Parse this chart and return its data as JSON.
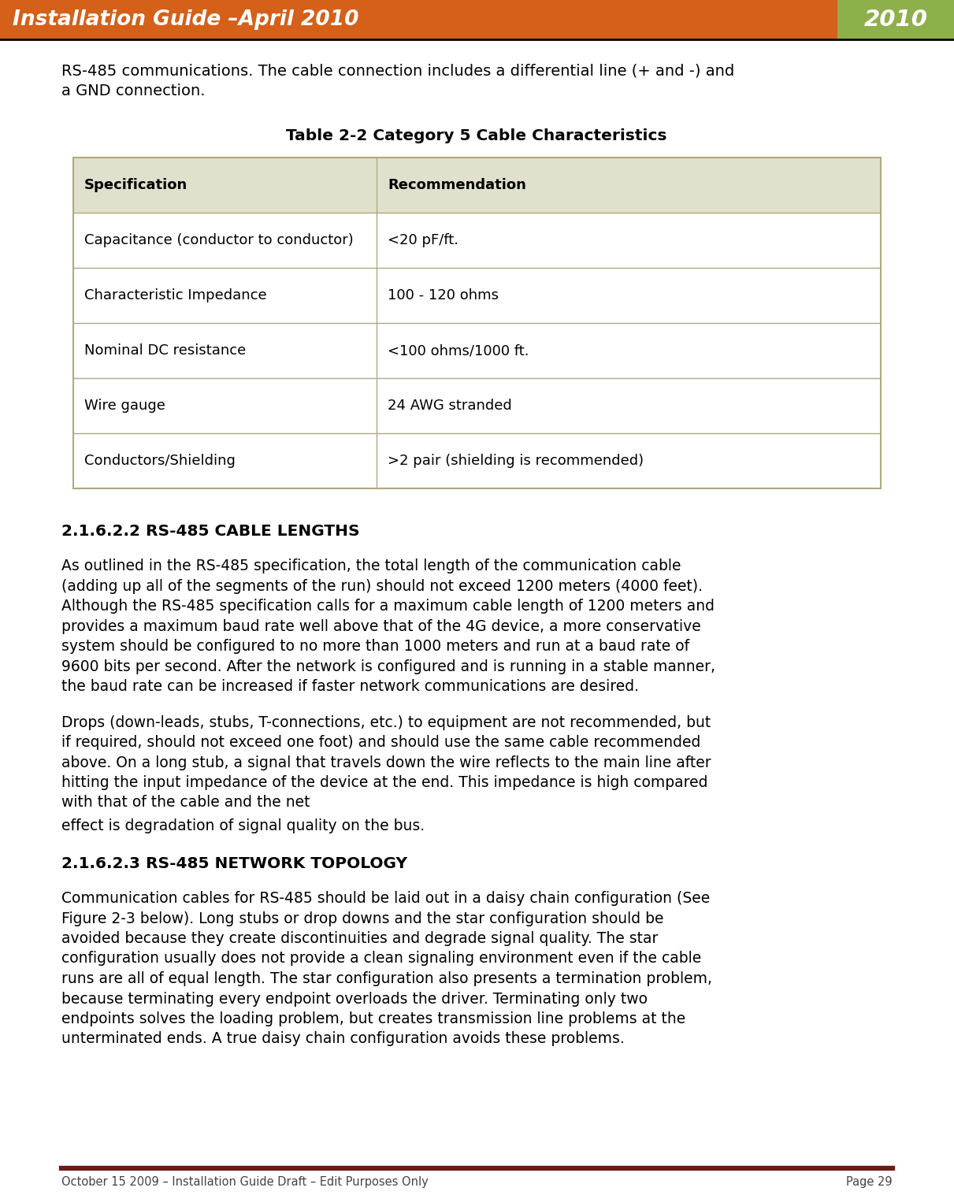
{
  "header_orange": "#D4601A",
  "header_green": "#8DB04B",
  "header_text": "Installation Guide –April 2010",
  "header_year": "2010",
  "header_text_color": "#FFFFFF",
  "body_bg": "#FFFFFF",
  "intro_text_line1": "RS-485 communications. The cable connection includes a differential line (+ and -) and",
  "intro_text_line2": "a GND connection.",
  "table_title": "Table 2-2 Category 5 Cable Characteristics",
  "table_headers": [
    "Specification",
    "Recommendation"
  ],
  "table_rows": [
    [
      "Capacitance (conductor to conductor)",
      "<20 pF/ft."
    ],
    [
      "Characteristic Impedance",
      "100 - 120 ohms"
    ],
    [
      "Nominal DC resistance",
      "<100 ohms/1000 ft."
    ],
    [
      "Wire gauge",
      "24 AWG stranded"
    ],
    [
      "Conductors/Shielding",
      ">2 pair (shielding is recommended)"
    ]
  ],
  "table_border_color": "#B0A880",
  "table_header_bg": "#E0E0CC",
  "section1_heading": "2.1.6.2.2 RS-485 CABLE LENGTHS",
  "section1_para1_lines": [
    "As outlined in the RS-485 specification, the total length of the communication cable",
    "(adding up all of the segments of the run) should not exceed 1200 meters (4000 feet).",
    "Although the RS-485 specification calls for a maximum cable length of 1200 meters and",
    "provides a maximum baud rate well above that of the 4G device, a more conservative",
    "system should be configured to no more than 1000 meters and run at a baud rate of",
    "9600 bits per second. After the network is configured and is running in a stable manner,",
    "the baud rate can be increased if faster network communications are desired."
  ],
  "section1_para2_lines": [
    "Drops (down-leads, stubs, T-connections, etc.) to equipment are not recommended, but",
    "if required, should not exceed one foot) and should use the same cable recommended",
    "above. On a long stub, a signal that travels down the wire reflects to the main line after",
    "hitting the input impedance of the device at the end. This impedance is high compared",
    "with that of the cable and the net"
  ],
  "section1_para3": "effect is degradation of signal quality on the bus.",
  "section2_heading": "2.1.6.2.3 RS-485 NETWORK TOPOLOGY",
  "section2_para_lines": [
    "Communication cables for RS-485 should be laid out in a daisy chain configuration (See",
    "Figure 2-3 below). Long stubs or drop downs and the star configuration should be",
    "avoided because they create discontinuities and degrade signal quality. The star",
    "configuration usually does not provide a clean signaling environment even if the cable",
    "runs are all of equal length. The star configuration also presents a termination problem,",
    "because terminating every endpoint overloads the driver. Terminating only two",
    "endpoints solves the loading problem, but creates transmission line problems at the",
    "unterminated ends. A true daisy chain configuration avoids these problems."
  ],
  "footer_line_color": "#6B1A1A",
  "footer_text": "October 15 2009 – Installation Guide Draft – Edit Purposes Only",
  "footer_page": "Page 29",
  "text_color": "#000000"
}
